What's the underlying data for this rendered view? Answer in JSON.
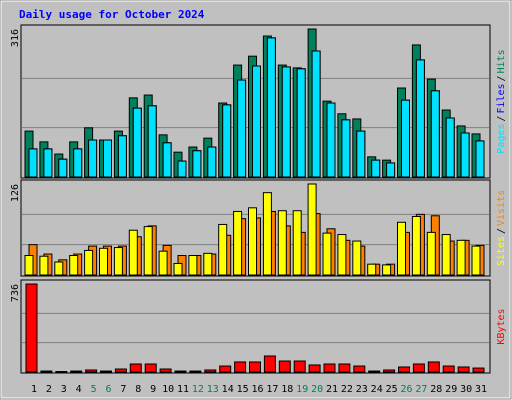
{
  "chart_data": [
    {
      "type": "bar",
      "title": "Daily usage for October 2024",
      "ylim": [
        0,
        316
      ],
      "yticks": [
        316
      ],
      "legend_separator": "/",
      "series": [
        {
          "name": "Hits",
          "color": "#00805c",
          "values": [
            98,
            75,
            49,
            75,
            105,
            79,
            98,
            169,
            175,
            90,
            53,
            64,
            83,
            158,
            239,
            258,
            301,
            239,
            233,
            316,
            162,
            135,
            124,
            43,
            36,
            190,
            282,
            209,
            143,
            109,
            92
          ]
        },
        {
          "name": "Files",
          "color": "#0000ff",
          "values": [
            60,
            60,
            38,
            60,
            79,
            79,
            88,
            147,
            152,
            73,
            34,
            56,
            64,
            154,
            207,
            237,
            297,
            235,
            231,
            269,
            158,
            122,
            98,
            36,
            30,
            164,
            250,
            184,
            126,
            94,
            77
          ]
        },
        {
          "name": "Pages",
          "color": "#00e0ff",
          "values": [
            60,
            60,
            38,
            60,
            79,
            79,
            88,
            147,
            152,
            73,
            34,
            56,
            64,
            154,
            207,
            237,
            297,
            235,
            231,
            269,
            158,
            122,
            98,
            36,
            30,
            164,
            250,
            184,
            126,
            94,
            77
          ]
        }
      ]
    },
    {
      "type": "bar",
      "ylim": [
        0,
        126
      ],
      "yticks": [
        126
      ],
      "legend_separator": "/",
      "series": [
        {
          "name": "Visits",
          "color": "#ff8000",
          "values": [
            42,
            29,
            21,
            29,
            40,
            40,
            40,
            53,
            68,
            41,
            27,
            27,
            29,
            55,
            78,
            79,
            88,
            68,
            59,
            85,
            64,
            48,
            40,
            15,
            15,
            59,
            84,
            82,
            47,
            48,
            41
          ]
        },
        {
          "name": "Sites",
          "color": "#ffff00",
          "values": [
            27,
            26,
            18,
            27,
            34,
            37,
            38,
            62,
            67,
            33,
            16,
            27,
            30,
            70,
            88,
            93,
            114,
            89,
            89,
            126,
            58,
            56,
            47,
            15,
            14,
            73,
            81,
            59,
            56,
            48,
            40
          ]
        }
      ]
    },
    {
      "type": "bar",
      "ylim": [
        0,
        736
      ],
      "yticks": [
        736
      ],
      "categories": [
        "1",
        "2",
        "3",
        "4",
        "5",
        "6",
        "7",
        "8",
        "9",
        "10",
        "11",
        "12",
        "13",
        "14",
        "15",
        "16",
        "17",
        "18",
        "19",
        "20",
        "21",
        "22",
        "23",
        "24",
        "25",
        "26",
        "27",
        "28",
        "29",
        "30",
        "31"
      ],
      "category_colors": [
        "#000000",
        "#000000",
        "#000000",
        "#000000",
        "#00805c",
        "#00805c",
        "#000000",
        "#000000",
        "#000000",
        "#000000",
        "#000000",
        "#00805c",
        "#00805c",
        "#000000",
        "#000000",
        "#000000",
        "#000000",
        "#000000",
        "#00805c",
        "#00805c",
        "#000000",
        "#000000",
        "#000000",
        "#000000",
        "#000000",
        "#00805c",
        "#00805c",
        "#000000",
        "#000000",
        "#000000",
        "#000000"
      ],
      "series": [
        {
          "name": "KBytes",
          "color": "#ff0000",
          "values": [
            736,
            8,
            4,
            8,
            17,
            8,
            25,
            67,
            67,
            25,
            8,
            8,
            17,
            50,
            84,
            84,
            134,
            92,
            92,
            59,
            67,
            67,
            50,
            8,
            17,
            42,
            67,
            84,
            50,
            42,
            33
          ]
        }
      ]
    }
  ]
}
